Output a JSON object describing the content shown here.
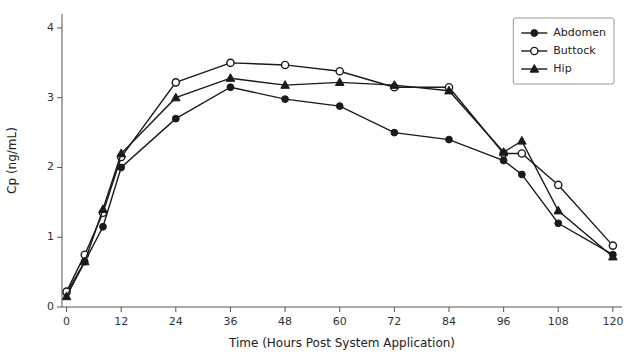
{
  "chart_data": {
    "type": "line",
    "x": [
      0,
      4,
      8,
      12,
      24,
      36,
      48,
      60,
      72,
      84,
      96,
      100,
      108,
      120
    ],
    "xlabel": "Time (Hours Post System Application)",
    "ylabel": "Cp (ng/mL)",
    "xlim": [
      -1,
      122
    ],
    "ylim": [
      0,
      4.2
    ],
    "xticks": [
      0,
      12,
      24,
      36,
      48,
      60,
      72,
      84,
      96,
      108,
      120
    ],
    "yticks": [
      0,
      1,
      2,
      3,
      4
    ],
    "grid": false,
    "legend": "upper right",
    "series": [
      {
        "name": "Abdomen",
        "color": "#1a1a1a",
        "marker": "circle",
        "values": [
          0.2,
          0.65,
          1.15,
          2.0,
          2.7,
          3.15,
          2.98,
          2.88,
          2.5,
          2.4,
          2.1,
          1.9,
          1.2,
          0.75
        ]
      },
      {
        "name": "Buttock",
        "color": "#1a1a1a",
        "marker": "open-circle",
        "values": [
          0.22,
          0.75,
          1.35,
          2.15,
          3.22,
          3.5,
          3.47,
          3.38,
          3.15,
          3.15,
          2.2,
          2.2,
          1.75,
          0.88
        ]
      },
      {
        "name": "Hip",
        "color": "#1a1a1a",
        "marker": "triangle",
        "values": [
          0.15,
          0.65,
          1.4,
          2.2,
          3.0,
          3.28,
          3.18,
          3.22,
          3.18,
          3.1,
          2.22,
          2.38,
          1.38,
          0.72
        ]
      }
    ]
  }
}
